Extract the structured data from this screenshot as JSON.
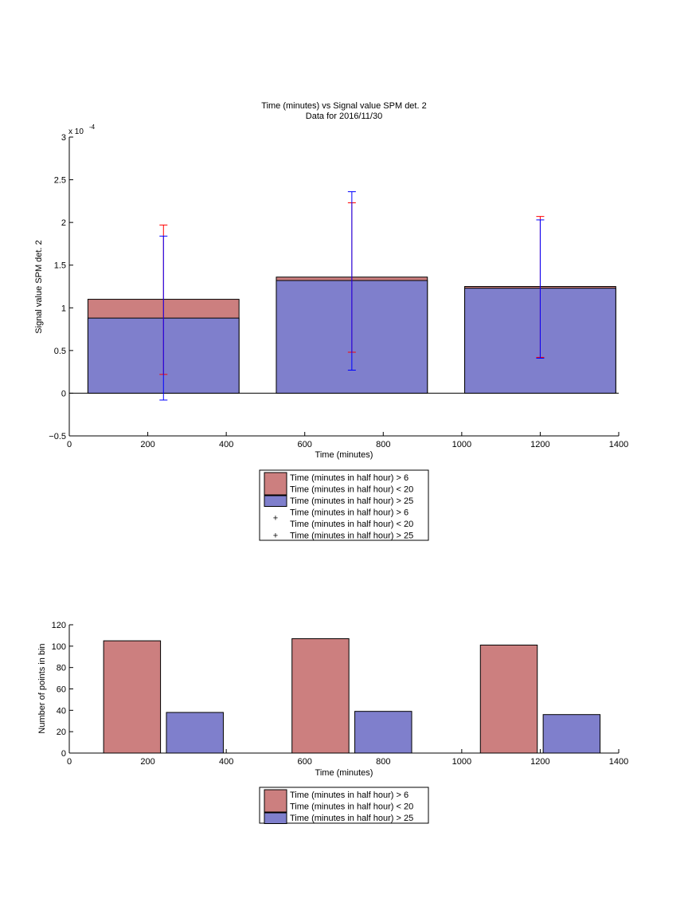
{
  "colors": {
    "red_bar": "#cc7f7f",
    "blue_bar": "#7f7fcc",
    "red_err": "#ff0000",
    "blue_err": "#0000ff",
    "axis": "#000000"
  },
  "chart_data": [
    {
      "type": "bar",
      "title": "Time (minutes) vs Signal value SPM det. 2",
      "subtitle": "Data for 2016/11/30",
      "xlabel": "Time (minutes)",
      "ylabel": "Signal value SPM det. 2",
      "exponent_label": "x 10",
      "exponent_power": "-4",
      "xlim": [
        0,
        1400
      ],
      "ylim": [
        -0.5,
        3
      ],
      "xticks": [
        "0",
        "200",
        "400",
        "600",
        "800",
        "1000",
        "1200",
        "1400"
      ],
      "yticks": [
        "−0.5",
        "0",
        "0.5",
        "1",
        "1.5",
        "2",
        "2.5",
        "3"
      ],
      "bar_centers": [
        240,
        720,
        1200
      ],
      "bar_width": 385,
      "series": [
        {
          "name": "Time (minutes in half hour) > 6\nTime (minutes in half hour) < 20",
          "color": "#cc7f7f",
          "values": [
            1.1,
            1.36,
            1.25
          ]
        },
        {
          "name": "Time (minutes in half hour) > 25",
          "color": "#7f7fcc",
          "values": [
            0.88,
            1.32,
            1.23
          ]
        }
      ],
      "errorbars": [
        {
          "name": "Time (minutes in half hour) > 6\nTime (minutes in half hour) < 20",
          "color": "#ff0000",
          "x": [
            240,
            720,
            1200
          ],
          "lower": [
            0.22,
            0.48,
            0.42
          ],
          "upper": [
            1.97,
            2.23,
            2.07
          ]
        },
        {
          "name": "Time (minutes in half hour) > 25",
          "color": "#0000ff",
          "x": [
            240,
            720,
            1200
          ],
          "lower": [
            -0.08,
            0.27,
            0.41
          ],
          "upper": [
            1.84,
            2.36,
            2.03
          ]
        }
      ],
      "legend": {
        "position": "below",
        "entries": [
          {
            "type": "patch",
            "color": "#cc7f7f",
            "lines": [
              "Time (minutes in half hour) > 6",
              "Time (minutes in half hour) < 20"
            ]
          },
          {
            "type": "patch",
            "color": "#7f7fcc",
            "lines": [
              "Time (minutes in half hour) > 25"
            ]
          },
          {
            "type": "marker",
            "color": "#ff0000",
            "marker": "+",
            "lines": [
              "Time (minutes in half hour) > 6",
              "Time (minutes in half hour) < 20"
            ]
          },
          {
            "type": "marker",
            "color": "#0000ff",
            "marker": "+",
            "lines": [
              "Time (minutes in half hour) > 25"
            ]
          }
        ]
      }
    },
    {
      "type": "bar",
      "title": "",
      "xlabel": "Time (minutes)",
      "ylabel": "Number of points in bin",
      "xlim": [
        0,
        1400
      ],
      "ylim": [
        0,
        120
      ],
      "xticks": [
        "0",
        "200",
        "400",
        "600",
        "800",
        "1000",
        "1200",
        "1400"
      ],
      "yticks": [
        "0",
        "20",
        "40",
        "60",
        "80",
        "100",
        "120"
      ],
      "bar_width": 145,
      "series": [
        {
          "name": "Time (minutes in half hour) > 6\nTime (minutes in half hour) < 20",
          "color": "#cc7f7f",
          "x": [
            160,
            640,
            1120
          ],
          "values": [
            105,
            107,
            101
          ]
        },
        {
          "name": "Time (minutes in half hour) > 25",
          "color": "#7f7fcc",
          "x": [
            320,
            800,
            1280
          ],
          "values": [
            38,
            39,
            36
          ]
        }
      ],
      "legend": {
        "position": "below",
        "entries": [
          {
            "type": "patch",
            "color": "#cc7f7f",
            "lines": [
              "Time (minutes in half hour) > 6",
              "Time (minutes in half hour) < 20"
            ]
          },
          {
            "type": "patch",
            "color": "#7f7fcc",
            "lines": [
              "Time (minutes in half hour) > 25"
            ]
          }
        ]
      }
    }
  ]
}
